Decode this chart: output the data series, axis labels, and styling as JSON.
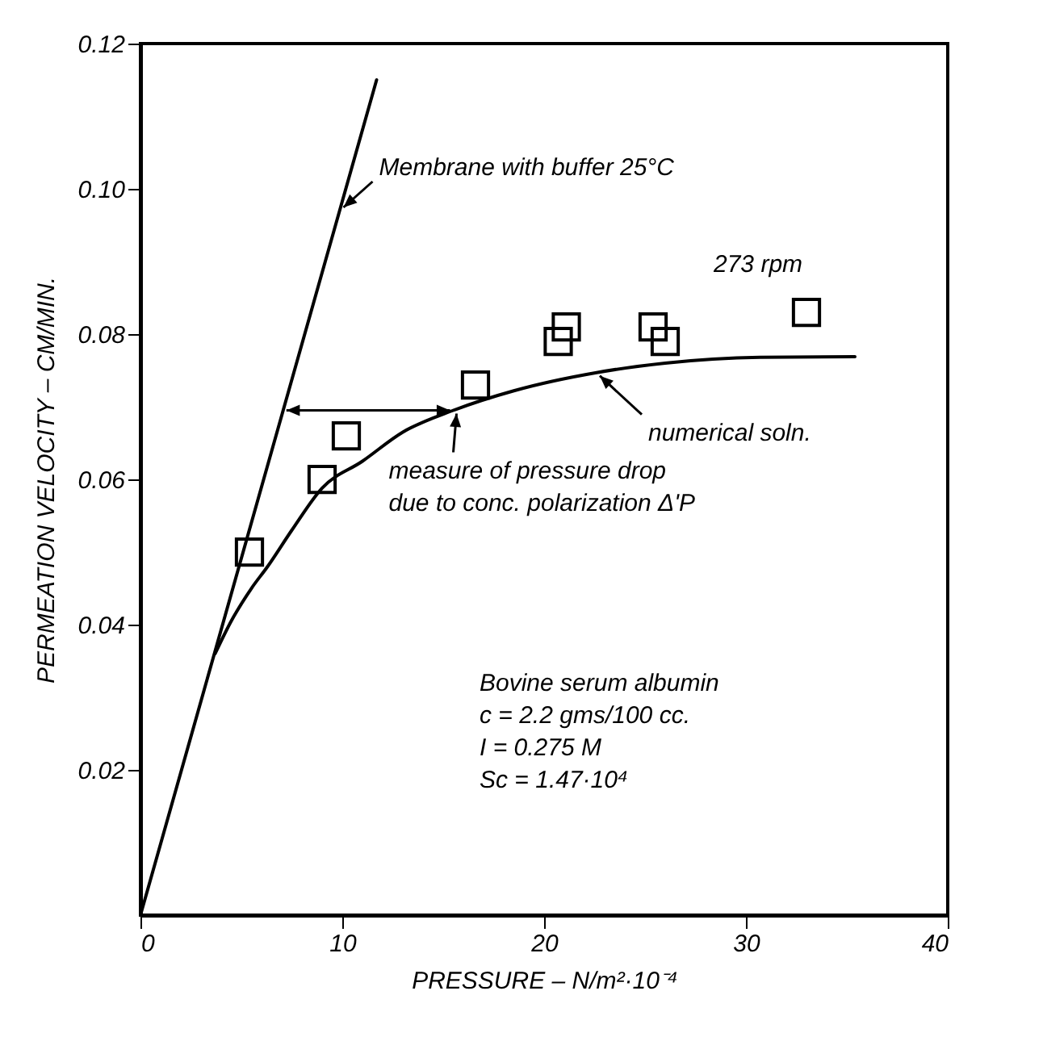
{
  "chart_data": {
    "type": "scatter",
    "xlabel": "PRESSURE – N/m²·10⁻⁴",
    "ylabel": "PERMEATION  VELOCITY – CM/MIN.",
    "xlim": [
      0,
      40
    ],
    "xticks": [
      0,
      10,
      20,
      30,
      40
    ],
    "ylim": [
      0,
      0.12
    ],
    "yticks": [
      0.02,
      0.04,
      0.06,
      0.08,
      {
        "value": 0.1,
        "label": "0.10"
      },
      0.12
    ],
    "grid": false,
    "series": [
      {
        "type": "line",
        "color": "#000000",
        "x": [
          0,
          11.7
        ],
        "values": [
          0,
          0.115
        ]
      },
      {
        "type": "line",
        "color": "#000000",
        "x": [
          3.7,
          4.5,
          5.5,
          6.3,
          7.5,
          9.0,
          11.0,
          13.0,
          15.5,
          18.5,
          22.6,
          26.0,
          30.7,
          35.4
        ],
        "values": [
          0.036,
          0.0405,
          0.045,
          0.048,
          0.053,
          0.0588,
          0.0625,
          0.0665,
          0.0695,
          0.0722,
          0.0747,
          0.076,
          0.0768,
          0.0769
        ]
      },
      {
        "marker": "square",
        "color": "#000000",
        "x": [
          5.4,
          9.0,
          10.2,
          16.6,
          20.7,
          21.1,
          25.4,
          26.0,
          33.0
        ],
        "values": [
          0.05,
          0.06,
          0.066,
          0.073,
          0.079,
          0.081,
          0.081,
          0.079,
          0.083
        ]
      }
    ],
    "annotations": [
      {
        "text": "Membrane with buffer 25°C",
        "x": 9.9,
        "y": 0.097
      },
      "273 rpm",
      {
        "text": "numerical soln.",
        "x": 22.6,
        "y": 0.0747
      },
      {
        "text": "measure of pressure drop\ndue to conc. polarization Δ'P",
        "x": 15.5,
        "y": 0.0695
      },
      "Bovine serum albumin\nc = 2.2 gms/100 cc.\nI = 0.275 M\nSc = 1.47·10⁴"
    ]
  }
}
